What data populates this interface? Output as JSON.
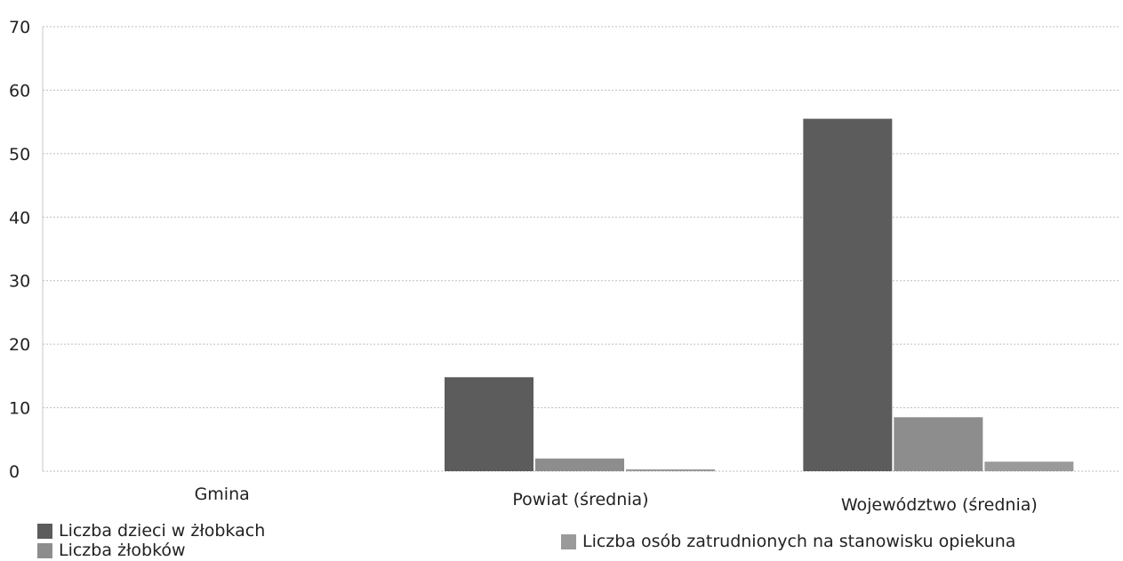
{
  "chart_data": {
    "type": "bar",
    "categories": [
      "Gmina",
      "Powiat (średnia)",
      "Województwo (średnia)"
    ],
    "series": [
      {
        "name": "Liczba dzieci w żłobkach",
        "values": [
          0,
          14.8,
          55.5
        ],
        "color": "#5c5c5c"
      },
      {
        "name": "Liczba żłobków",
        "values": [
          0,
          2.0,
          8.5
        ],
        "color": "#8d8d8d"
      },
      {
        "name": "Liczba osób zatrudnionych na stanowisku opiekuna",
        "values": [
          0,
          0.3,
          1.5
        ],
        "color": "#9a9a9a"
      }
    ],
    "yticks": [
      "0",
      "10",
      "20",
      "30",
      "40",
      "50",
      "60",
      "70"
    ],
    "ylim": [
      0,
      70
    ],
    "grid": true,
    "legend_position": "bottom"
  }
}
